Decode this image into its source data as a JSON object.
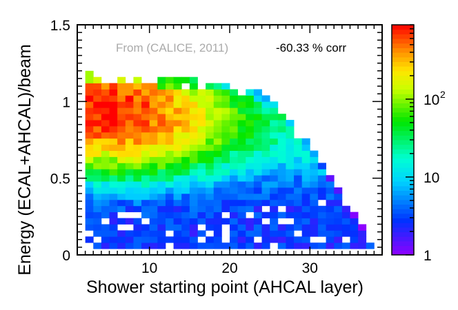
{
  "chart_data": {
    "type": "heatmap",
    "title": "",
    "xlabel": "Shower starting point (AHCAL layer)",
    "ylabel": "Energy (ECAL+AHCAL)/beam",
    "annotations": {
      "source": "From (CALICE, 2011)",
      "correlation": "-60.33 % corr"
    },
    "xlim": [
      1,
      39
    ],
    "ylim": [
      0,
      1.5
    ],
    "x_ticks": [
      {
        "value": 10,
        "label": "10"
      },
      {
        "value": 20,
        "label": "20"
      },
      {
        "value": 30,
        "label": "30"
      }
    ],
    "y_ticks": [
      {
        "value": 0,
        "label": "0"
      },
      {
        "value": 0.5,
        "label": "0.5"
      },
      {
        "value": 1,
        "label": "1"
      },
      {
        "value": 1.5,
        "label": "1.5"
      }
    ],
    "colorbar": {
      "scale": "log",
      "range": [
        1,
        900
      ],
      "ticks": [
        {
          "value": 1,
          "label": "1"
        },
        {
          "value": 10,
          "label": "10"
        },
        {
          "value": 100,
          "label": "10",
          "sup": "2"
        }
      ]
    },
    "bins": {
      "x_width": 1,
      "y_width": 0.04,
      "x_centers": [
        2.5,
        37.5
      ],
      "y_centers": [
        0.06,
        1.18
      ]
    },
    "distribution": {
      "peak": {
        "x": 4,
        "y": 0.95,
        "count": 800
      },
      "upper_edge": [
        {
          "x": 2,
          "y": 1.2
        },
        {
          "x": 21,
          "y": 1.12
        },
        {
          "x": 26,
          "y": 1.0
        },
        {
          "x": 30,
          "y": 0.72
        },
        {
          "x": 34,
          "y": 0.42
        },
        {
          "x": 38,
          "y": 0.08
        }
      ],
      "low_tail_count": 3
    }
  }
}
